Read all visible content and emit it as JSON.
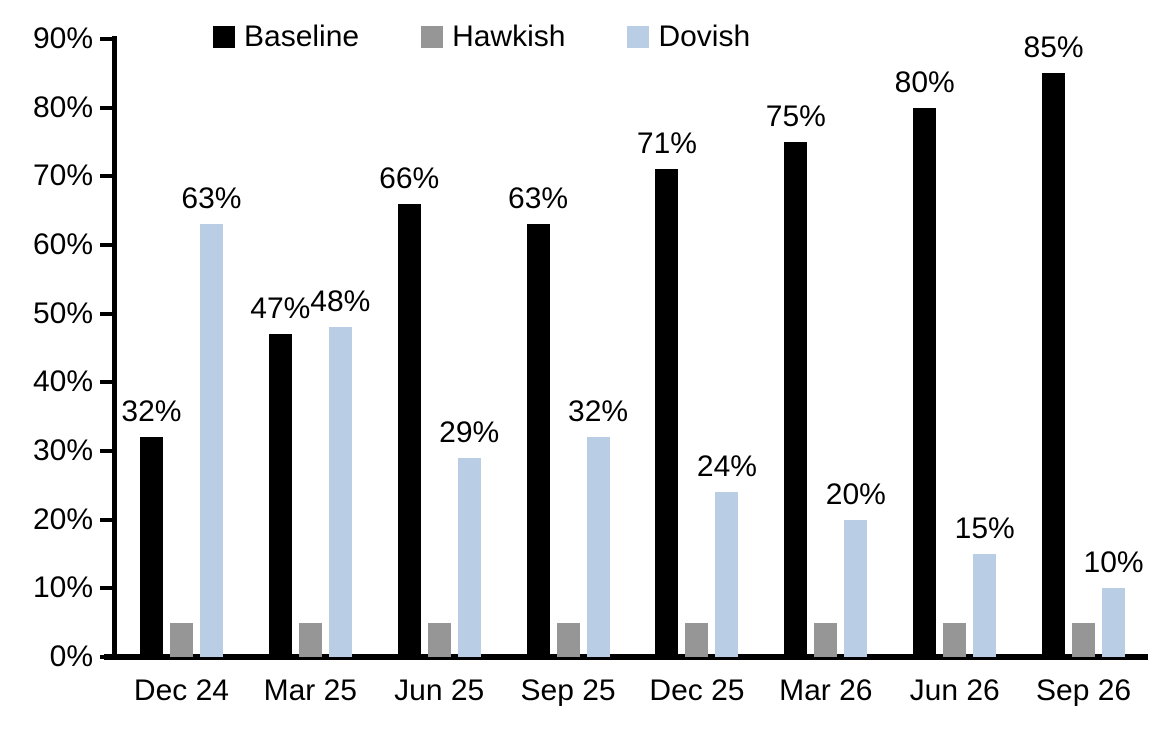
{
  "chart_data": {
    "type": "bar",
    "title": "",
    "xlabel": "",
    "ylabel": "",
    "categories": [
      "Dec 24",
      "Mar 25",
      "Jun 25",
      "Sep 25",
      "Dec 25",
      "Mar 26",
      "Jun 26",
      "Sep 26"
    ],
    "series": [
      {
        "name": "Baseline",
        "color": "#000000",
        "values": [
          32,
          47,
          66,
          63,
          71,
          75,
          80,
          85
        ],
        "data_labels": [
          "32%",
          "47%",
          "66%",
          "63%",
          "71%",
          "75%",
          "80%",
          "85%"
        ]
      },
      {
        "name": "Hawkish",
        "color": "#969696",
        "values": [
          5,
          5,
          5,
          5,
          5,
          5,
          5,
          5
        ],
        "data_labels": [
          "",
          "",
          "",
          "",
          "",
          "",
          "",
          ""
        ]
      },
      {
        "name": "Dovish",
        "color": "#b9cde4",
        "values": [
          63,
          48,
          29,
          32,
          24,
          20,
          15,
          10
        ],
        "data_labels": [
          "63%",
          "48%",
          "29%",
          "32%",
          "24%",
          "20%",
          "15%",
          "10%"
        ]
      }
    ],
    "ylim": [
      0,
      90
    ],
    "ytick_step": 10,
    "yticks": [
      "0%",
      "10%",
      "20%",
      "30%",
      "40%",
      "50%",
      "60%",
      "70%",
      "80%",
      "90%"
    ],
    "grid": false,
    "legend_position": "top"
  },
  "legend": {
    "items": [
      {
        "label": "Baseline",
        "color": "#000000"
      },
      {
        "label": "Hawkish",
        "color": "#969696"
      },
      {
        "label": "Dovish",
        "color": "#b9cde4"
      }
    ]
  }
}
